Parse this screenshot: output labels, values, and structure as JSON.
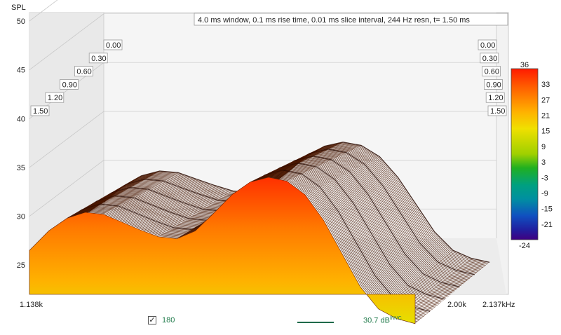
{
  "chart_data": {
    "type": "area",
    "subtype": "cumulative spectral decay (waterfall)",
    "title": "4.0 ms window, 0.1 ms rise time, 0.01 ms slice interval, 244 Hz resn, t= 1.50 ms",
    "ylabel": "SPL",
    "ylim": [
      22,
      51
    ],
    "yticks": [
      25,
      30,
      35,
      40,
      45,
      50
    ],
    "xlim_khz": [
      1.138,
      2.137
    ],
    "xtick_labels": [
      "1.138k",
      "2.00k",
      "2.137kHz"
    ],
    "xticks_khz": [
      1.138,
      2.0
    ],
    "time_labels_ms": [
      "0.00",
      "0.30",
      "0.60",
      "0.90",
      "1.20",
      "1.50"
    ],
    "colorbar": {
      "ticks": [
        36,
        33,
        27,
        21,
        15,
        9,
        3,
        -3,
        -9,
        -15,
        -21,
        -24
      ],
      "colors": [
        "#ff1a00",
        "#ff5a00",
        "#ff9a00",
        "#ffd000",
        "#e8e000",
        "#9ed000",
        "#3cc000",
        "#00a060",
        "#0090a0",
        "#1050c0",
        "#2020a0",
        "#400080"
      ]
    },
    "series": [
      {
        "time_ms": 0.0,
        "x_khz": [
          1.138,
          1.18,
          1.22,
          1.26,
          1.3,
          1.34,
          1.38,
          1.42,
          1.46,
          1.5,
          1.54,
          1.58,
          1.62,
          1.66,
          1.7,
          1.74,
          1.78,
          1.82,
          1.86,
          1.9,
          1.94,
          1.98
        ],
        "spl": [
          26.5,
          28.5,
          29.8,
          30.4,
          30.2,
          29.4,
          28.6,
          27.9,
          27.7,
          28.5,
          30.3,
          32.2,
          33.5,
          34.0,
          33.6,
          32.2,
          29.6,
          26.2,
          22.8,
          20.5,
          19.5,
          19.0
        ]
      }
    ],
    "footer": {
      "checkbox_checked": true,
      "checkbox_value": "180",
      "level_text": "30.7 dB",
      "level_superscript": "INVC"
    }
  }
}
